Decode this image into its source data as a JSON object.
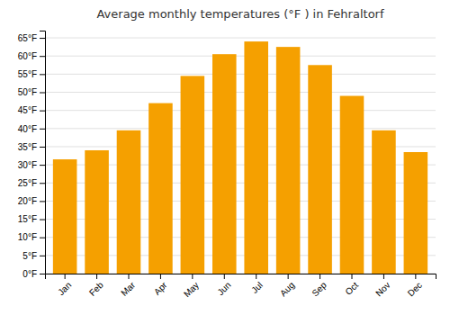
{
  "chart_data": {
    "type": "bar",
    "title": "Average monthly temperatures (°F ) in Fehraltorf",
    "categories": [
      "Jan",
      "Feb",
      "Mar",
      "Apr",
      "May",
      "Jun",
      "Jul",
      "Aug",
      "Sep",
      "Oct",
      "Nov",
      "Dec"
    ],
    "values": [
      31.5,
      34.0,
      39.5,
      47.0,
      54.5,
      60.5,
      64.0,
      62.5,
      57.5,
      49.0,
      39.5,
      33.5
    ],
    "color": "#F5A000",
    "ylim": [
      0,
      67
    ],
    "yticks": [
      {
        "value": 0,
        "label": "0°F"
      },
      {
        "value": 5,
        "label": "5°F"
      },
      {
        "value": 10,
        "label": "10°F"
      },
      {
        "value": 15,
        "label": "15°F"
      },
      {
        "value": 20,
        "label": "20°F"
      },
      {
        "value": 25,
        "label": "25°F"
      },
      {
        "value": 30,
        "label": "30°F"
      },
      {
        "value": 35,
        "label": "35°F"
      },
      {
        "value": 40,
        "label": "40°F"
      },
      {
        "value": 45,
        "label": "45°F"
      },
      {
        "value": 50,
        "label": "50°F"
      },
      {
        "value": 55,
        "label": "55°F"
      },
      {
        "value": 60,
        "label": "60°F"
      },
      {
        "value": 65,
        "label": "65°F"
      }
    ],
    "grid": true
  }
}
